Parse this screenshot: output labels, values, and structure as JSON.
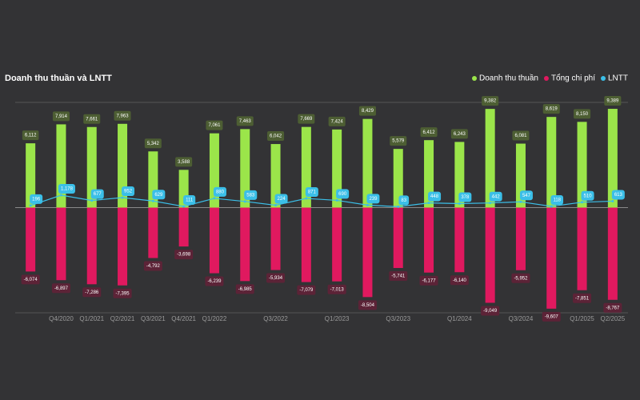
{
  "chart_data": {
    "type": "bar",
    "title": "Doanh thu thuần và LNTT",
    "categories": [
      null,
      "Q4/2020",
      "Q1/2021",
      "Q2/2021",
      "Q3/2021",
      "Q4/2021",
      "Q1/2022",
      null,
      "Q3/2022",
      null,
      "Q1/2023",
      null,
      "Q3/2023",
      null,
      "Q1/2024",
      null,
      "Q3/2024",
      null,
      "Q1/2025",
      "Q2/2025"
    ],
    "series": [
      {
        "name": "Doanh thu thuần",
        "color": "#9be54a",
        "type": "bar",
        "values": [
          6112,
          7914,
          7661,
          7963,
          5342,
          3588,
          7061,
          7463,
          6042,
          7669,
          7424,
          8429,
          5579,
          6412,
          6243,
          9382,
          6081,
          8619,
          8150,
          9389
        ],
        "value_labels": [
          "6,112",
          "7,914",
          "7,661",
          "7,963",
          "5,342",
          "3,588",
          "7,061",
          "7,463",
          "6,042",
          "7,669",
          "7,424",
          "8,429",
          "5,579",
          "6,412",
          "6,243",
          "9,382",
          "6,081",
          "8,619",
          "8,150",
          "9,389"
        ]
      },
      {
        "name": "Tổng chi phí",
        "color": "#e0195f",
        "type": "bar",
        "values": [
          -6074,
          -6897,
          -7286,
          -7395,
          -4792,
          -3698,
          -6239,
          -6985,
          -5934,
          -7079,
          -7013,
          -8504,
          -5741,
          -6177,
          -6140,
          -9049,
          -5952,
          -9607,
          -7851,
          -8767
        ],
        "value_labels": [
          "-6,074",
          "-6,897",
          "-7,286",
          "-7,395",
          "-4,792",
          "-3,698",
          "-6,239",
          "-6,985",
          "-5,934",
          "-7,079",
          "-7,013",
          "-8,504",
          "-5,741",
          "-6,177",
          "-6,140",
          "-9,049",
          "-5,952",
          "-9,607",
          "-7,851",
          "-8,767"
        ]
      },
      {
        "name": "LNTT",
        "color": "#3bbfe8",
        "type": "line",
        "values": [
          196,
          1178,
          677,
          952,
          629,
          111,
          880,
          583,
          224,
          871,
          690,
          239,
          83,
          448,
          378,
          442,
          547,
          118,
          510,
          613
        ],
        "value_labels": [
          "196",
          "1,178",
          "677",
          "952",
          "629",
          "111",
          "880",
          "583",
          "224",
          "871",
          "690",
          "239",
          "83",
          "448",
          "378",
          "442",
          "547",
          "118",
          "510",
          "613"
        ]
      }
    ],
    "ylim": [
      -10000,
      10000
    ],
    "yticks": [
      -10000,
      0,
      10000
    ],
    "grid": true,
    "legend": "top-right"
  }
}
